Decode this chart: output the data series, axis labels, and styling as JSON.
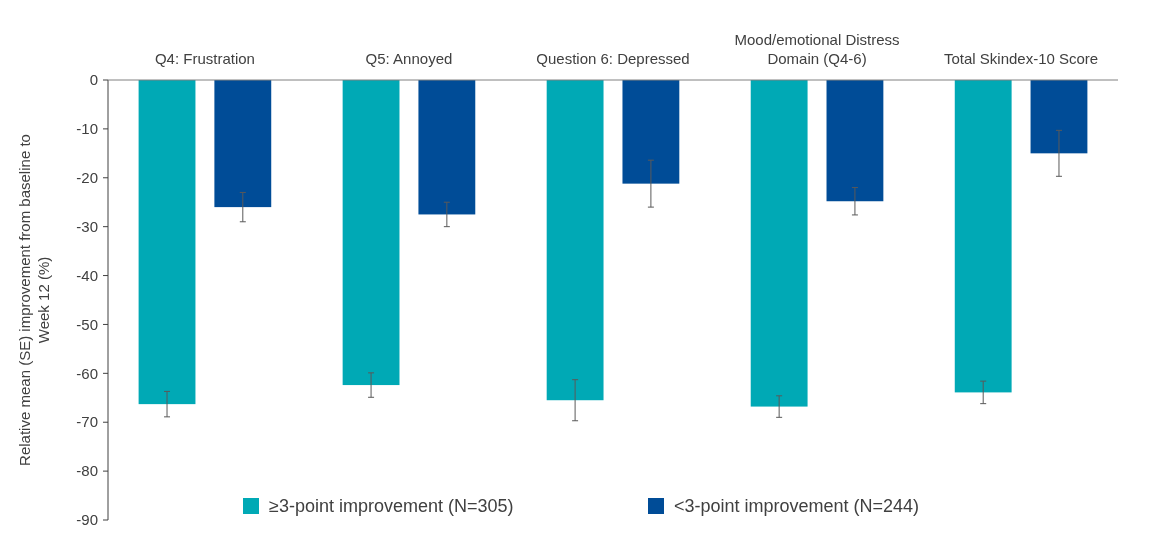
{
  "chart_data": {
    "type": "bar",
    "ylabel": "Relative mean (SE) improvement  from baseline to Week 12 (%)",
    "categories": [
      "Q4: Frustration",
      "Q5: Annoyed",
      "Question 6: Depressed",
      "Mood/emotional Distress Domain (Q4-6)",
      "Total Skindex-10 Score"
    ],
    "series": [
      {
        "name": "≥3-point improvement (N=305)",
        "color": "#00a9b5",
        "values": [
          -66.3,
          -62.4,
          -65.5,
          -66.8,
          -63.9
        ],
        "errors": [
          2.6,
          2.5,
          4.2,
          2.2,
          2.3
        ]
      },
      {
        "name": "<3-point improvement (N=244)",
        "color": "#004c97",
        "values": [
          -26,
          -27.5,
          -21.2,
          -24.8,
          -15
        ],
        "errors": [
          3,
          2.5,
          4.8,
          2.8,
          4.7
        ]
      }
    ],
    "ylim": [
      -90,
      0
    ],
    "yticks": [
      0,
      -10,
      -20,
      -30,
      -40,
      -50,
      -60,
      -70,
      -80,
      -90
    ],
    "grid": false,
    "legend": "bottom"
  }
}
